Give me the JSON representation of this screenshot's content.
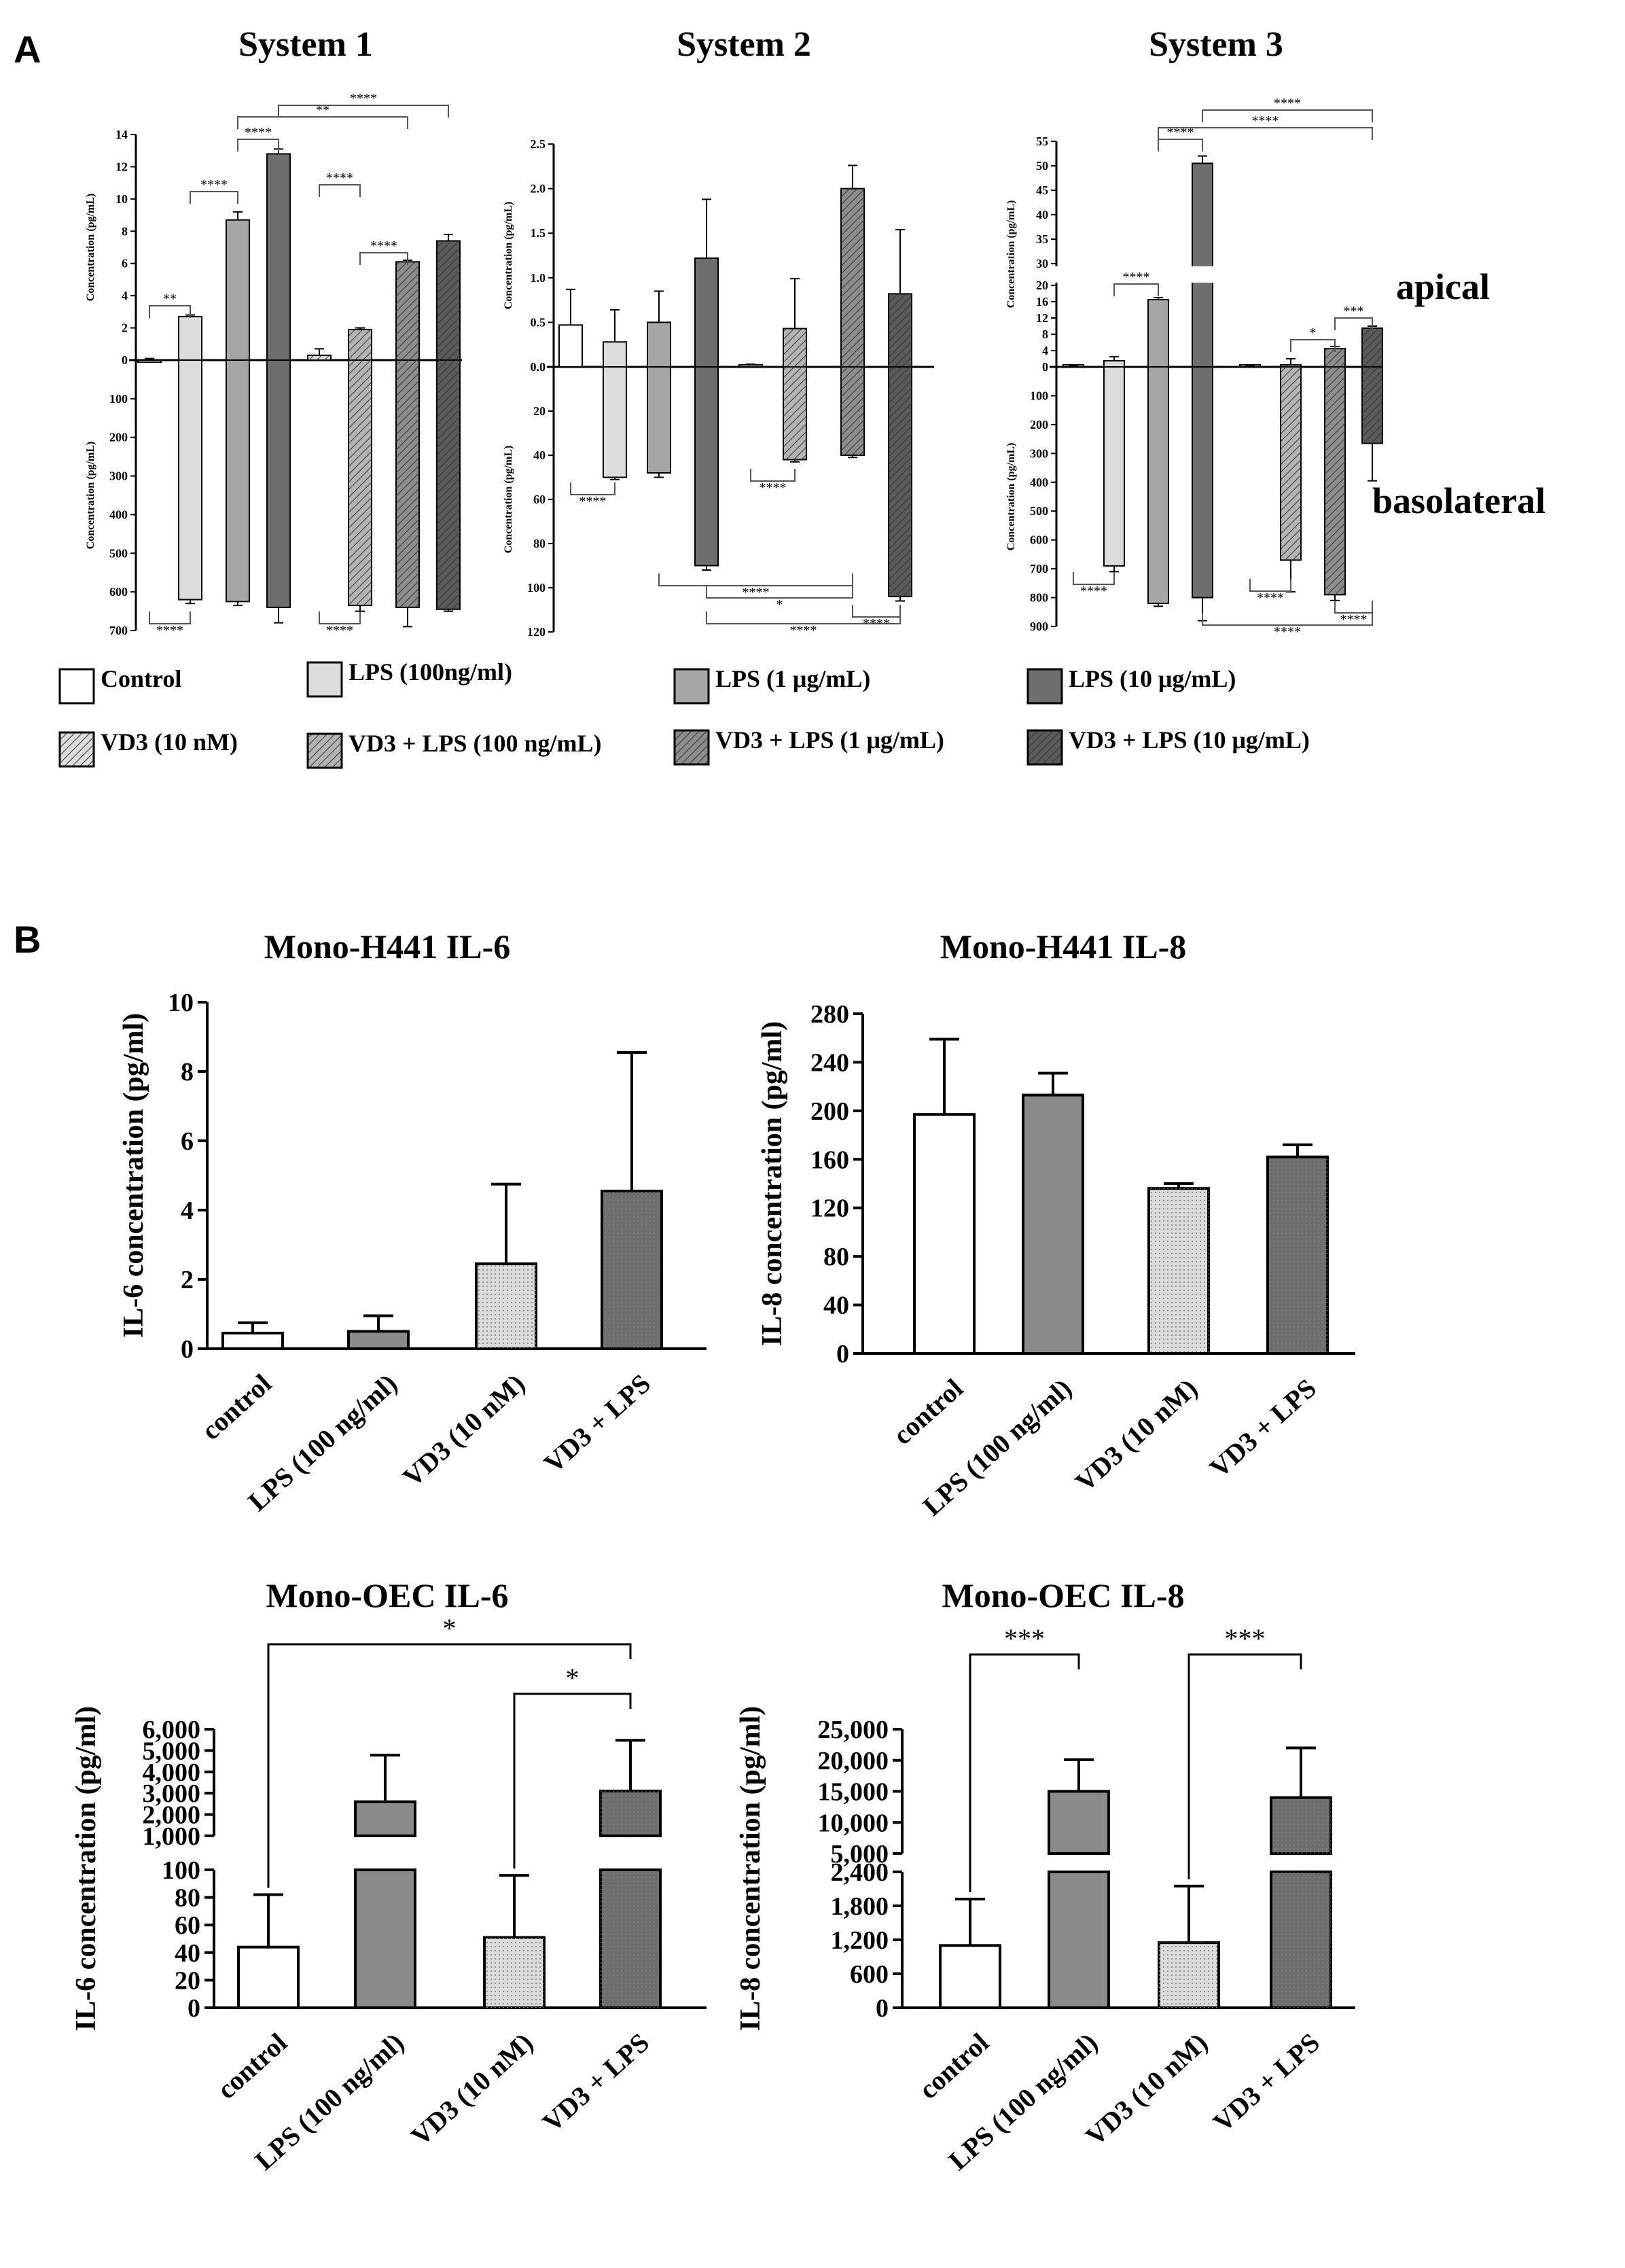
{
  "panel_labels": {
    "a": "A",
    "b": "B"
  },
  "side_labels": {
    "apical": "apical",
    "basolateral": "basolateral"
  },
  "legend": [
    {
      "label": "Control",
      "fill": "#ffffff",
      "hatch": false
    },
    {
      "label": "LPS (100ng/ml)",
      "fill": "#dcdcdc",
      "hatch": false
    },
    {
      "label": "LPS (1 μg/mL)",
      "fill": "#a6a6a6",
      "hatch": false
    },
    {
      "label": "LPS (10 μg/mL)",
      "fill": "#6e6e6e",
      "hatch": false
    },
    {
      "label": "VD3 (10 nM)",
      "fill": "#dcdcdc",
      "hatch": true
    },
    {
      "label": "VD3 + LPS (100 ng/mL)",
      "fill": "#b4b4b4",
      "hatch": true
    },
    {
      "label": "VD3 + LPS (1 μg/mL)",
      "fill": "#8c8c8c",
      "hatch": true
    },
    {
      "label": "VD3 + LPS (10 μg/mL)",
      "fill": "#5a5a5a",
      "hatch": true
    }
  ],
  "chart_data": [
    {
      "type": "bar",
      "title": "System 1",
      "ylabel_apical": "Concentration (pg/mL)",
      "ylabel_basolateral": "Concentration (pg/mL)",
      "categories": [
        "Control",
        "LPS (100ng/ml)",
        "LPS (1 μg/mL)",
        "LPS (10 μg/mL)",
        "VD3 (10 nM)",
        "VD3 + LPS (100 ng/mL)",
        "VD3 + LPS (1 μg/mL)",
        "VD3 + LPS (10 μg/mL)"
      ],
      "apical": {
        "ylim": [
          0,
          14
        ],
        "ticks": [
          "0",
          "2",
          "4",
          "6",
          "8",
          "10",
          "12",
          "14"
        ],
        "values": [
          -0.2,
          2.7,
          8.7,
          12.8,
          0.3,
          1.9,
          6.1,
          7.4
        ],
        "errors": [
          0.1,
          0.1,
          0.5,
          0.3,
          0.4,
          0.1,
          0.1,
          0.4
        ]
      },
      "basolateral": {
        "ylim": [
          0,
          700
        ],
        "ticks": [
          "0",
          "100",
          "200",
          "300",
          "400",
          "500",
          "600",
          "700"
        ],
        "values": [
          0,
          620,
          625,
          640,
          0,
          635,
          640,
          645
        ],
        "errors": [
          0,
          10,
          10,
          40,
          0,
          15,
          50,
          5
        ]
      },
      "significance": [
        "**",
        "****",
        "****",
        "**",
        "****",
        "****",
        "****",
        "****",
        "****"
      ]
    },
    {
      "type": "bar",
      "title": "System 2",
      "ylabel_apical": "Concentration (pg/mL)",
      "ylabel_basolateral": "Concentration (pg/mL)",
      "categories": [
        "Control",
        "LPS (100ng/ml)",
        "LPS (1 μg/mL)",
        "LPS (10 μg/mL)",
        "VD3 (10 nM)",
        "VD3 + LPS (100 ng/mL)",
        "VD3 + LPS (1 μg/mL)",
        "VD3 + LPS (10 μg/mL)"
      ],
      "apical": {
        "ylim": [
          0,
          2.5
        ],
        "ticks": [
          "0.0",
          "0.5",
          "1.0",
          "1.5",
          "2.0",
          "2.5"
        ],
        "values": [
          0.47,
          0.28,
          0.5,
          1.22,
          0.02,
          0.43,
          2.0,
          0.82
        ],
        "errors": [
          0.4,
          0.36,
          0.35,
          0.66,
          0.01,
          0.56,
          0.26,
          0.72
        ]
      },
      "basolateral": {
        "ylim": [
          0,
          120
        ],
        "ticks": [
          "0",
          "20",
          "40",
          "60",
          "80",
          "100",
          "120"
        ],
        "values": [
          0,
          50,
          48,
          90,
          0,
          42,
          40,
          104
        ],
        "errors": [
          0,
          1,
          2,
          2,
          0,
          1,
          1,
          2
        ]
      },
      "significance": [
        "****",
        "****",
        "****",
        "*",
        "****",
        "****"
      ]
    },
    {
      "type": "bar",
      "title": "System 3",
      "ylabel_apical": "Concentration (pg/mL)",
      "ylabel_basolateral": "Concentration (pg/mL)",
      "categories": [
        "Control",
        "LPS (100ng/ml)",
        "LPS (1 μg/mL)",
        "LPS (10 μg/mL)",
        "VD3 (10 nM)",
        "VD3 + LPS (100 ng/mL)",
        "VD3 + LPS (1 μg/mL)",
        "VD3 + LPS (10 μg/mL)"
      ],
      "apical": {
        "ylim": [
          0,
          55
        ],
        "ticks": [
          "0",
          "4",
          "8",
          "12",
          "16",
          "20",
          "30",
          "35",
          "40",
          "45",
          "50",
          "55"
        ],
        "values": [
          0.1,
          1.5,
          16.5,
          50.5,
          0.2,
          0.5,
          4.5,
          9.5
        ],
        "errors": [
          0.1,
          1.0,
          0.5,
          1.5,
          0.1,
          1.5,
          0.5,
          0.5
        ]
      },
      "basolateral": {
        "ylim": [
          0,
          900
        ],
        "ticks": [
          "0",
          "100",
          "200",
          "300",
          "400",
          "500",
          "600",
          "700",
          "800",
          "900"
        ],
        "values": [
          0,
          690,
          820,
          800,
          0,
          670,
          790,
          265
        ],
        "errors": [
          0,
          20,
          10,
          80,
          0,
          110,
          20,
          130
        ]
      },
      "significance": [
        "****",
        "****",
        "****",
        "****",
        "****",
        "****",
        "***",
        "*",
        "****",
        "****"
      ]
    },
    {
      "type": "bar",
      "title": "Mono-H441 IL-6",
      "ylabel": "IL-6 concentration (pg/ml)",
      "categories": [
        "control",
        "LPS (100 ng/ml)",
        "VD3 (10 nM)",
        "VD3 + LPS"
      ],
      "values": [
        0.45,
        0.5,
        2.45,
        4.55
      ],
      "errors": [
        0.3,
        0.45,
        2.3,
        4.0
      ],
      "ylim": [
        0,
        10
      ],
      "ticks": [
        "0",
        "2",
        "4",
        "6",
        "8",
        "10"
      ]
    },
    {
      "type": "bar",
      "title": "Mono-H441 IL-8",
      "ylabel": "IL-8 concentration (pg/ml)",
      "categories": [
        "control",
        "LPS (100 ng/ml)",
        "VD3 (10 nM)",
        "VD3 + LPS"
      ],
      "values": [
        197,
        213,
        136,
        162
      ],
      "errors": [
        62,
        18,
        4,
        10
      ],
      "ylim": [
        0,
        280
      ],
      "ticks": [
        "0",
        "40",
        "80",
        "120",
        "160",
        "200",
        "240",
        "280"
      ]
    },
    {
      "type": "bar",
      "title": "Mono-OEC IL-6",
      "ylabel": "IL-6 concentration (pg/ml)",
      "categories": [
        "control",
        "LPS (100 ng/ml)",
        "VD3 (10 nM)",
        "VD3 + LPS"
      ],
      "values": [
        44,
        2600,
        51,
        3100
      ],
      "errors": [
        38,
        2180,
        45,
        2380
      ],
      "ylim_lower": [
        0,
        100
      ],
      "ylim_upper": [
        1000,
        6000
      ],
      "ticks_lower": [
        "0",
        "20",
        "40",
        "60",
        "80",
        "100"
      ],
      "ticks_upper": [
        "1,000",
        "2,000",
        "3,000",
        "4,000",
        "5,000",
        "6,000"
      ],
      "significance": [
        "*",
        "*"
      ]
    },
    {
      "type": "bar",
      "title": "Mono-OEC IL-8",
      "ylabel": "IL-8 concentration (pg/ml)",
      "categories": [
        "control",
        "LPS (100 ng/ml)",
        "VD3 (10 nM)",
        "VD3 + LPS"
      ],
      "values": [
        1100,
        15000,
        1150,
        14000
      ],
      "errors": [
        820,
        5100,
        1000,
        8000
      ],
      "ylim_lower": [
        0,
        2400
      ],
      "ylim_upper": [
        5000,
        25000
      ],
      "ticks_lower": [
        "0",
        "600",
        "1,200",
        "1,800",
        "2,400"
      ],
      "ticks_upper": [
        "5,000",
        "10,000",
        "15,000",
        "20,000",
        "25,000"
      ],
      "significance": [
        "***",
        "***"
      ]
    }
  ]
}
